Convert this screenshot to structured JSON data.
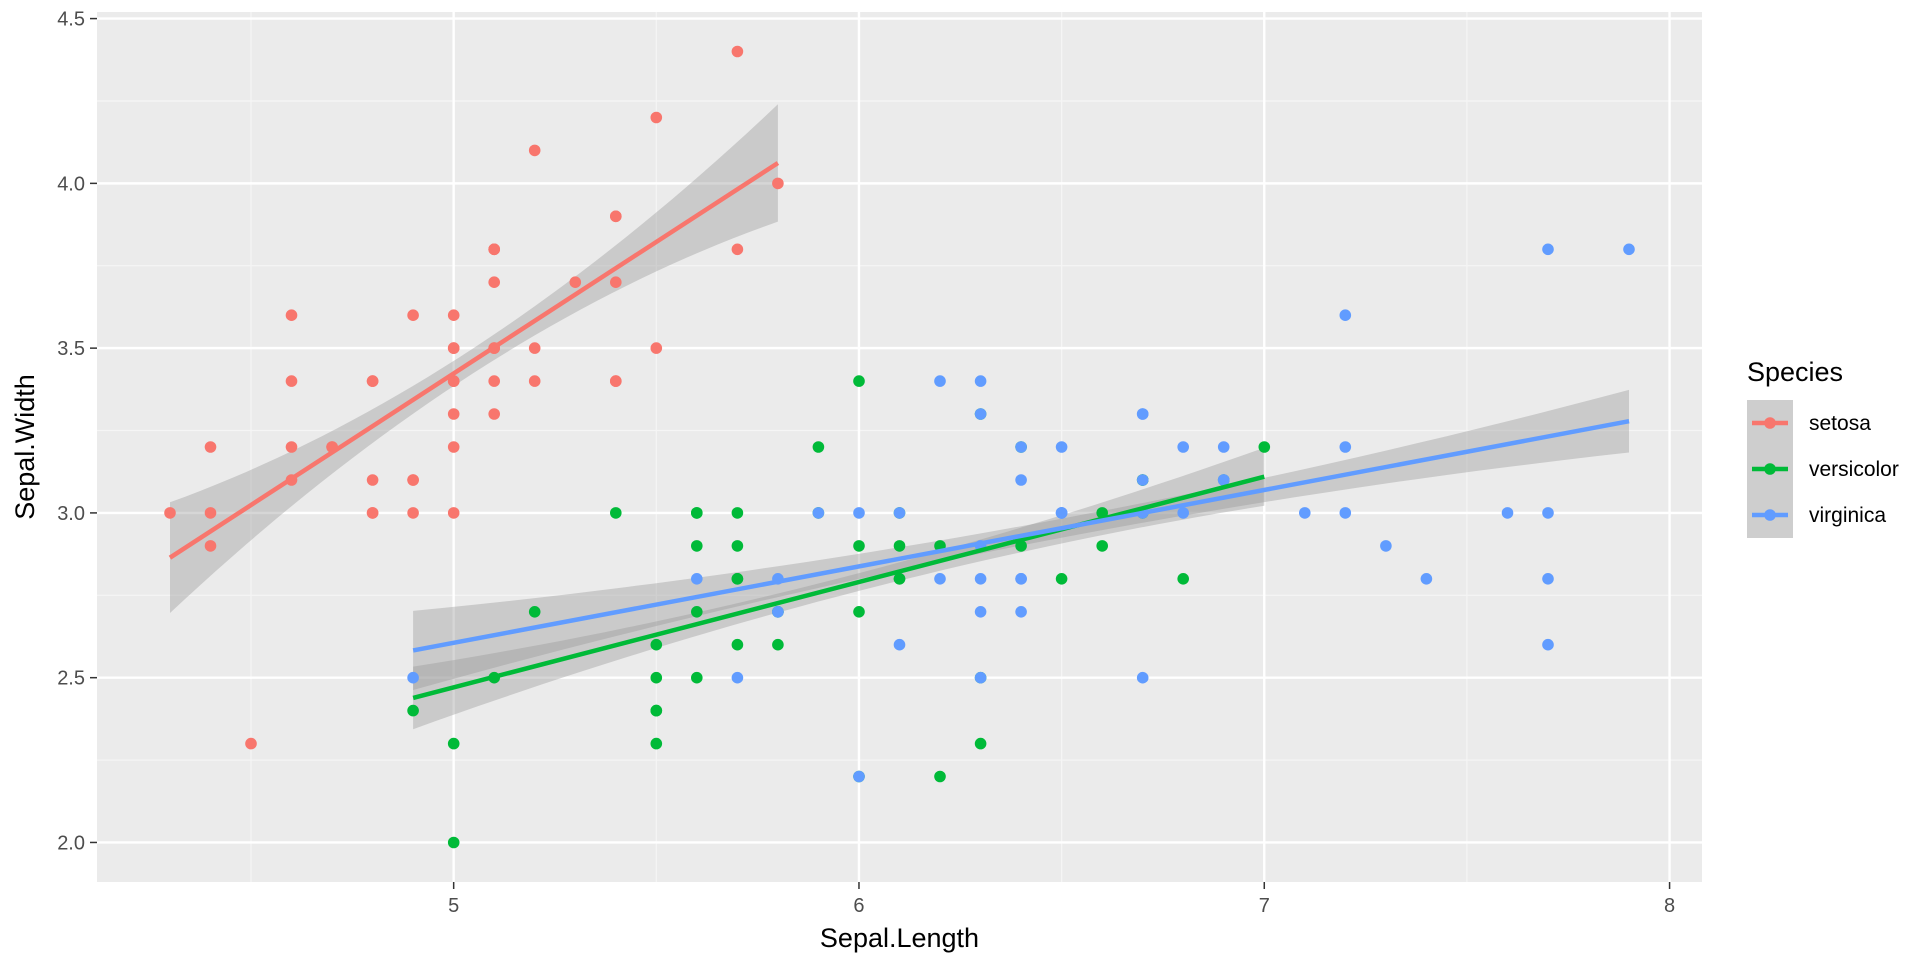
{
  "chart_data": {
    "type": "scatter",
    "title": "",
    "xlabel": "Sepal.Length",
    "ylabel": "Sepal.Width",
    "xlim": [
      4.12,
      8.08
    ],
    "ylim": [
      1.88,
      4.52
    ],
    "x_ticks": [
      5,
      6,
      7,
      8
    ],
    "x_tick_labels": [
      "5",
      "6",
      "7",
      "8"
    ],
    "y_ticks": [
      2.0,
      2.5,
      3.0,
      3.5,
      4.0,
      4.5
    ],
    "y_tick_labels": [
      "2.0",
      "2.5",
      "3.0",
      "3.5",
      "4.0",
      "4.5"
    ],
    "grid": true,
    "legend": {
      "title": "Species",
      "placement": "right"
    },
    "series": [
      {
        "name": "setosa",
        "color": "#F8766D",
        "points": [
          [
            5.1,
            3.5
          ],
          [
            4.9,
            3.0
          ],
          [
            4.7,
            3.2
          ],
          [
            4.6,
            3.1
          ],
          [
            5.0,
            3.6
          ],
          [
            5.4,
            3.9
          ],
          [
            4.6,
            3.4
          ],
          [
            5.0,
            3.4
          ],
          [
            4.4,
            2.9
          ],
          [
            4.9,
            3.1
          ],
          [
            5.4,
            3.7
          ],
          [
            4.8,
            3.4
          ],
          [
            4.8,
            3.0
          ],
          [
            4.3,
            3.0
          ],
          [
            5.8,
            4.0
          ],
          [
            5.7,
            4.4
          ],
          [
            5.4,
            3.9
          ],
          [
            5.1,
            3.5
          ],
          [
            5.7,
            3.8
          ],
          [
            5.1,
            3.8
          ],
          [
            5.4,
            3.4
          ],
          [
            5.1,
            3.7
          ],
          [
            4.6,
            3.6
          ],
          [
            5.1,
            3.3
          ],
          [
            4.8,
            3.4
          ],
          [
            5.0,
            3.0
          ],
          [
            5.0,
            3.4
          ],
          [
            5.2,
            3.5
          ],
          [
            5.2,
            3.4
          ],
          [
            4.7,
            3.2
          ],
          [
            4.8,
            3.1
          ],
          [
            5.4,
            3.4
          ],
          [
            5.2,
            4.1
          ],
          [
            5.5,
            4.2
          ],
          [
            4.9,
            3.1
          ],
          [
            5.0,
            3.2
          ],
          [
            5.5,
            3.5
          ],
          [
            4.9,
            3.6
          ],
          [
            4.4,
            3.0
          ],
          [
            5.1,
            3.4
          ],
          [
            5.0,
            3.5
          ],
          [
            4.5,
            2.3
          ],
          [
            4.4,
            3.2
          ],
          [
            5.0,
            3.5
          ],
          [
            5.1,
            3.8
          ],
          [
            4.8,
            3.0
          ],
          [
            5.1,
            3.8
          ],
          [
            4.6,
            3.2
          ],
          [
            5.3,
            3.7
          ],
          [
            5.0,
            3.3
          ]
        ],
        "fit": {
          "x_range": [
            4.3,
            5.8
          ],
          "intercept": -0.5694,
          "slope": 0.7985,
          "se_start": 0.168,
          "se_mid": 0.038,
          "se_end": 0.178,
          "x_mid": 5.006
        }
      },
      {
        "name": "versicolor",
        "color": "#00BA38",
        "points": [
          [
            7.0,
            3.2
          ],
          [
            6.4,
            3.2
          ],
          [
            6.9,
            3.1
          ],
          [
            5.5,
            2.3
          ],
          [
            6.5,
            2.8
          ],
          [
            5.7,
            2.8
          ],
          [
            6.3,
            3.3
          ],
          [
            4.9,
            2.4
          ],
          [
            6.6,
            2.9
          ],
          [
            5.2,
            2.7
          ],
          [
            5.0,
            2.0
          ],
          [
            5.9,
            3.0
          ],
          [
            6.0,
            2.2
          ],
          [
            6.1,
            2.9
          ],
          [
            5.6,
            2.9
          ],
          [
            6.7,
            3.1
          ],
          [
            5.6,
            3.0
          ],
          [
            5.8,
            2.7
          ],
          [
            6.2,
            2.2
          ],
          [
            5.6,
            2.5
          ],
          [
            5.9,
            3.2
          ],
          [
            6.1,
            2.8
          ],
          [
            6.3,
            2.5
          ],
          [
            6.1,
            2.8
          ],
          [
            6.4,
            2.9
          ],
          [
            6.6,
            3.0
          ],
          [
            6.8,
            2.8
          ],
          [
            6.7,
            3.0
          ],
          [
            6.0,
            2.9
          ],
          [
            5.7,
            2.6
          ],
          [
            5.5,
            2.4
          ],
          [
            5.5,
            2.4
          ],
          [
            5.8,
            2.7
          ],
          [
            6.0,
            2.7
          ],
          [
            5.4,
            3.0
          ],
          [
            6.0,
            3.4
          ],
          [
            6.7,
            3.1
          ],
          [
            6.3,
            2.3
          ],
          [
            5.6,
            3.0
          ],
          [
            5.5,
            2.5
          ],
          [
            5.5,
            2.6
          ],
          [
            6.1,
            3.0
          ],
          [
            5.8,
            2.6
          ],
          [
            5.0,
            2.3
          ],
          [
            5.6,
            2.7
          ],
          [
            5.7,
            3.0
          ],
          [
            5.7,
            2.9
          ],
          [
            6.2,
            2.9
          ],
          [
            5.1,
            2.5
          ],
          [
            5.7,
            2.8
          ]
        ],
        "fit": {
          "x_range": [
            4.9,
            7.0
          ],
          "intercept": 0.8721,
          "slope": 0.3197,
          "se_start": 0.095,
          "se_mid": 0.027,
          "se_end": 0.088,
          "x_mid": 5.936
        }
      },
      {
        "name": "virginica",
        "color": "#619CFF",
        "points": [
          [
            6.3,
            3.3
          ],
          [
            5.8,
            2.7
          ],
          [
            7.1,
            3.0
          ],
          [
            6.3,
            2.9
          ],
          [
            6.5,
            3.0
          ],
          [
            7.6,
            3.0
          ],
          [
            4.9,
            2.5
          ],
          [
            7.3,
            2.9
          ],
          [
            6.7,
            2.5
          ],
          [
            7.2,
            3.6
          ],
          [
            6.5,
            3.2
          ],
          [
            6.4,
            2.7
          ],
          [
            6.8,
            3.0
          ],
          [
            5.7,
            2.5
          ],
          [
            5.8,
            2.8
          ],
          [
            6.4,
            3.2
          ],
          [
            6.5,
            3.0
          ],
          [
            7.7,
            3.8
          ],
          [
            7.7,
            2.6
          ],
          [
            6.0,
            2.2
          ],
          [
            6.9,
            3.2
          ],
          [
            5.6,
            2.8
          ],
          [
            7.7,
            2.8
          ],
          [
            6.3,
            2.7
          ],
          [
            6.7,
            3.3
          ],
          [
            7.2,
            3.2
          ],
          [
            6.2,
            2.8
          ],
          [
            6.1,
            3.0
          ],
          [
            6.4,
            2.8
          ],
          [
            7.2,
            3.0
          ],
          [
            7.4,
            2.8
          ],
          [
            7.9,
            3.8
          ],
          [
            6.4,
            2.8
          ],
          [
            6.3,
            2.8
          ],
          [
            6.1,
            2.6
          ],
          [
            7.7,
            3.0
          ],
          [
            6.3,
            3.4
          ],
          [
            6.4,
            3.1
          ],
          [
            6.0,
            3.0
          ],
          [
            6.9,
            3.1
          ],
          [
            6.7,
            3.1
          ],
          [
            6.9,
            3.1
          ],
          [
            5.8,
            2.7
          ],
          [
            6.8,
            3.2
          ],
          [
            6.7,
            3.3
          ],
          [
            6.7,
            3.0
          ],
          [
            6.3,
            2.5
          ],
          [
            6.5,
            3.0
          ],
          [
            6.2,
            3.4
          ],
          [
            5.9,
            3.0
          ]
        ],
        "fit": {
          "x_range": [
            4.9,
            7.9
          ],
          "intercept": 1.4463,
          "slope": 0.2319,
          "se_start": 0.12,
          "se_mid": 0.029,
          "se_end": 0.095,
          "x_mid": 6.588
        }
      }
    ]
  }
}
